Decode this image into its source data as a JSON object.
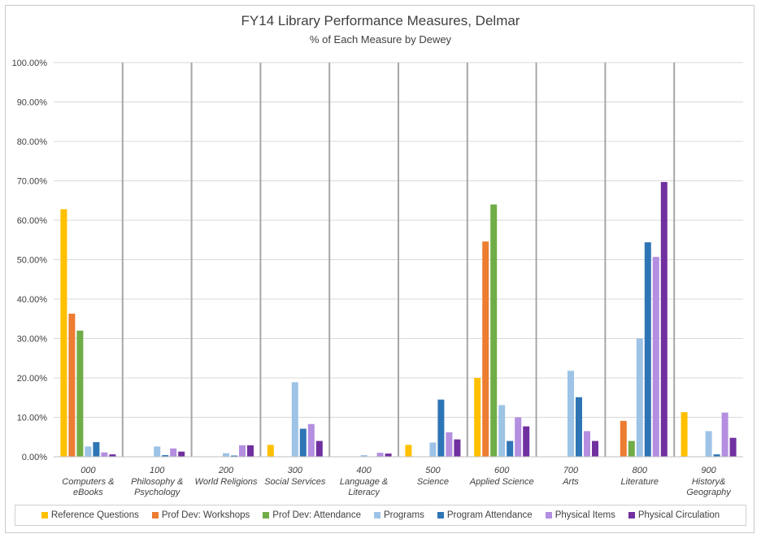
{
  "chart_data": {
    "type": "bar",
    "title": "FY14 Library Performance Measures, Delmar",
    "subtitle": "% of Each Measure by Dewey",
    "ylim": [
      0,
      100
    ],
    "yticks": [
      "0.00%",
      "10.00%",
      "20.00%",
      "30.00%",
      "40.00%",
      "50.00%",
      "60.00%",
      "70.00%",
      "80.00%",
      "90.00%",
      "100.00%"
    ],
    "grid": true,
    "legend_position": "bottom",
    "categories": [
      {
        "code": "000",
        "name": [
          "Computers &",
          "eBooks"
        ]
      },
      {
        "code": "100",
        "name": [
          "Philosophy &",
          "Psychology"
        ]
      },
      {
        "code": "200",
        "name": [
          "World Religions"
        ]
      },
      {
        "code": "300",
        "name": [
          "Social Services"
        ]
      },
      {
        "code": "400",
        "name": [
          "Language &",
          "Literacy"
        ]
      },
      {
        "code": "500",
        "name": [
          "Science"
        ]
      },
      {
        "code": "600",
        "name": [
          "Applied Science"
        ]
      },
      {
        "code": "700",
        "name": [
          "Arts"
        ]
      },
      {
        "code": "800",
        "name": [
          "Literature"
        ]
      },
      {
        "code": "900",
        "name": [
          "History&",
          "Geography"
        ]
      }
    ],
    "series": [
      {
        "name": "Reference Questions",
        "color": "#ffc000",
        "values": [
          62.8,
          0,
          0,
          3.0,
          0,
          3.0,
          20.0,
          0,
          0,
          11.3
        ]
      },
      {
        "name": "Prof Dev: Workshops",
        "color": "#ed7d31",
        "values": [
          36.3,
          0,
          0,
          0,
          0,
          0,
          54.6,
          0,
          9.1,
          0
        ]
      },
      {
        "name": "Prof Dev: Attendance",
        "color": "#70ad47",
        "values": [
          32.0,
          0,
          0,
          0,
          0,
          0,
          64.0,
          0,
          4.0,
          0
        ]
      },
      {
        "name": "Programs",
        "color": "#9dc3e6",
        "values": [
          2.6,
          2.6,
          0.9,
          18.9,
          0.4,
          3.6,
          13.1,
          21.8,
          30.0,
          6.5
        ]
      },
      {
        "name": "Program Attendance",
        "color": "#2e75b6",
        "values": [
          3.7,
          0.4,
          0.3,
          7.1,
          0.1,
          14.5,
          4.0,
          15.1,
          54.4,
          0.6
        ]
      },
      {
        "name": "Physical Items",
        "color": "#b48ee0",
        "values": [
          1.1,
          2.1,
          2.9,
          8.3,
          1.0,
          6.2,
          10.0,
          6.5,
          50.7,
          11.2
        ]
      },
      {
        "name": "Physical Circulation",
        "color": "#7030a0",
        "values": [
          0.6,
          1.3,
          2.9,
          4.0,
          0.8,
          4.4,
          7.7,
          4.0,
          69.7,
          4.8
        ]
      }
    ]
  }
}
